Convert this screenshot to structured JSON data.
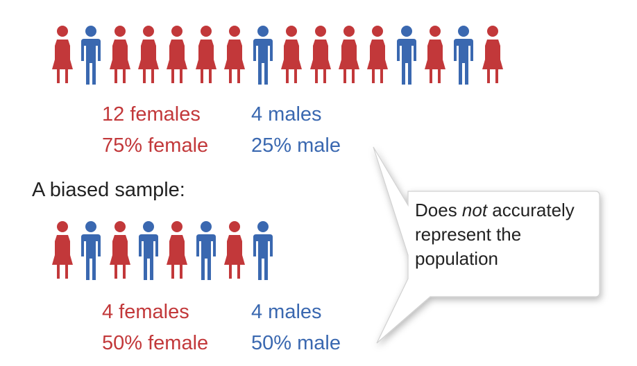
{
  "colors": {
    "female": "#c2383a",
    "male": "#3a68b0"
  },
  "population": {
    "figures": [
      "female",
      "male",
      "female",
      "female",
      "female",
      "female",
      "female",
      "male",
      "female",
      "female",
      "female",
      "female",
      "male",
      "female",
      "male",
      "female"
    ],
    "female_count_label": "12 females",
    "male_count_label": "4 males",
    "female_percent_label": "75% female",
    "male_percent_label": "25% male"
  },
  "sample": {
    "heading": "A biased sample:",
    "figures": [
      "female",
      "male",
      "female",
      "male",
      "female",
      "male",
      "female",
      "male"
    ],
    "female_count_label": "4 females",
    "male_count_label": "4 males",
    "female_percent_label": "50% female",
    "male_percent_label": "50% male"
  },
  "callout": {
    "text_before": "Does ",
    "text_emphasis": "not",
    "text_after": " accurately represent the population"
  }
}
